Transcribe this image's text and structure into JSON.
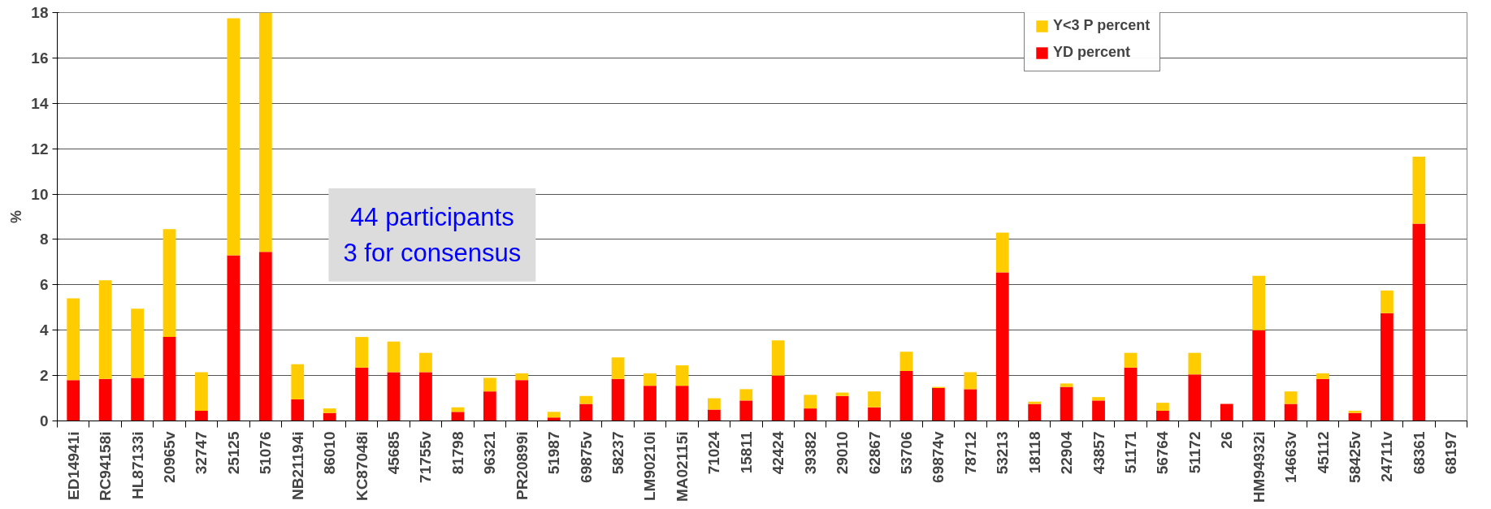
{
  "chart_data": {
    "type": "bar",
    "stacked": true,
    "ylabel": "%",
    "categories": [
      "ED14941i",
      "RC94158i",
      "HL87133i",
      "20965v",
      "32747",
      "25125",
      "51076",
      "NB21194i",
      "86010",
      "KC87048i",
      "45685",
      "71755v",
      "81798",
      "96321",
      "PR20899i",
      "51987",
      "69875v",
      "58237",
      "LM90210i",
      "MA02115i",
      "71024",
      "15811",
      "42424",
      "39382",
      "29010",
      "62867",
      "53706",
      "69874v",
      "78712",
      "53213",
      "18118",
      "22904",
      "43857",
      "51171",
      "56764",
      "51172",
      "26",
      "HM94932i",
      "14663v",
      "45112",
      "58425v",
      "24711v",
      "68361",
      "68197"
    ],
    "series": [
      {
        "name": "YD percent",
        "color": "#ff0000",
        "values": [
          1.8,
          1.85,
          1.9,
          3.7,
          0.45,
          7.3,
          7.45,
          0.95,
          0.35,
          2.35,
          2.15,
          2.15,
          0.4,
          1.3,
          1.8,
          0.15,
          0.75,
          1.85,
          1.55,
          1.55,
          0.5,
          0.9,
          2.0,
          0.55,
          1.1,
          0.6,
          2.2,
          1.45,
          1.4,
          6.55,
          0.75,
          1.5,
          0.9,
          2.35,
          0.45,
          2.05,
          0.75,
          4.0,
          0.75,
          1.85,
          0.35,
          4.75,
          8.7,
          0
        ]
      },
      {
        "name": "Y<3 P percent",
        "color": "#ffcc00",
        "values": [
          3.6,
          4.35,
          3.05,
          4.75,
          1.7,
          10.45,
          10.55,
          1.55,
          0.2,
          1.35,
          1.35,
          0.85,
          0.2,
          0.6,
          0.3,
          0.25,
          0.35,
          0.95,
          0.55,
          0.9,
          0.5,
          0.5,
          1.55,
          0.6,
          0.15,
          0.7,
          0.85,
          0.05,
          0.75,
          1.75,
          0.1,
          0.15,
          0.15,
          0.65,
          0.35,
          0.95,
          0,
          2.4,
          0.55,
          0.25,
          0.1,
          1.0,
          2.95,
          0
        ]
      }
    ],
    "ylim": [
      0,
      18
    ],
    "yticks": [
      0,
      2,
      4,
      6,
      8,
      10,
      12,
      14,
      16,
      18
    ],
    "grid": "y",
    "legend": "top right",
    "annotations": [
      "44 participants\n3 for consensus"
    ]
  }
}
